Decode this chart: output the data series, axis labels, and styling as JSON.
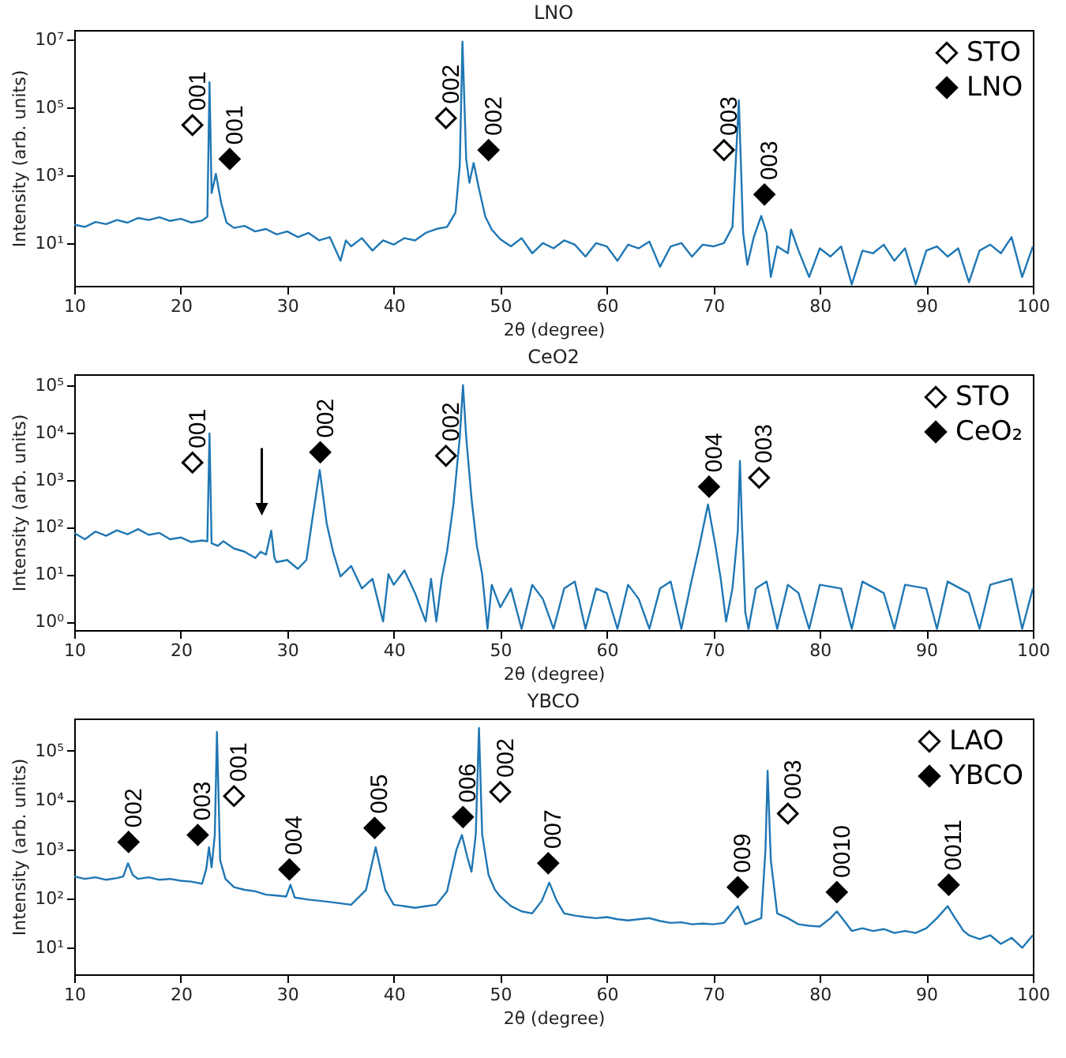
{
  "chart_data": [
    {
      "type": "line",
      "title": "LNO",
      "xlabel": "2θ (degree)",
      "ylabel": "Intensity (arb. units)",
      "log": "y",
      "legend": "top right",
      "xlim": [
        10,
        100
      ],
      "xticks": [
        10,
        20,
        30,
        40,
        50,
        60,
        70,
        80,
        90,
        100
      ],
      "ylim": [
        0.55,
        19000000
      ],
      "yticks": [
        {
          "value": 10,
          "label": "10¹"
        },
        {
          "value": 1000,
          "label": "10³"
        },
        {
          "value": 100000,
          "label": "10⁵"
        },
        {
          "value": 10000000,
          "label": "10⁷"
        }
      ],
      "series": [
        {
          "color": "#1f77b4",
          "x": [
            10,
            11,
            12,
            13,
            14,
            15,
            16,
            17,
            18,
            19,
            20,
            21,
            22,
            22.5,
            22.7,
            22.9,
            23.3,
            23.8,
            24.3,
            25,
            26,
            27,
            28,
            29,
            30,
            31,
            32,
            33,
            34,
            35,
            35.5,
            36,
            37,
            38,
            39,
            40,
            41,
            42,
            43,
            44,
            45,
            45.8,
            46.2,
            46.45,
            46.8,
            47.1,
            47.5,
            48,
            48.6,
            49.2,
            50,
            51,
            52,
            53,
            54,
            55,
            56,
            57,
            58,
            59,
            60,
            61,
            62,
            63,
            64,
            65,
            66,
            67,
            68,
            69,
            70,
            71,
            71.8,
            72.4,
            72.8,
            73.2,
            73.8,
            74.5,
            75,
            75.4,
            76,
            77,
            77.3,
            78,
            79,
            80,
            81,
            82,
            83,
            84,
            85,
            86,
            87,
            88,
            89,
            90,
            91,
            92,
            93,
            94,
            95,
            96,
            97,
            98,
            99,
            100
          ],
          "values": [
            35,
            30,
            42,
            36,
            48,
            40,
            55,
            48,
            58,
            45,
            52,
            40,
            46,
            60,
            550000,
            300,
            1100,
            150,
            40,
            28,
            32,
            22,
            26,
            18,
            22,
            15,
            20,
            12,
            15,
            3,
            12,
            8,
            14,
            6,
            12,
            9,
            14,
            12,
            20,
            26,
            30,
            80,
            2000,
            8700000,
            3000,
            600,
            2300,
            400,
            60,
            25,
            13,
            8,
            14,
            5,
            10,
            7,
            12,
            9,
            4,
            10,
            8,
            3,
            9,
            7,
            11,
            2,
            8,
            10,
            4,
            9,
            8,
            10,
            30,
            160000,
            20,
            2.3,
            15,
            63,
            20,
            1,
            8,
            5,
            25,
            6,
            1,
            7,
            4,
            8,
            0.6,
            6,
            5,
            9,
            3,
            7,
            0.6,
            6,
            8,
            4,
            7,
            0.7,
            6,
            9,
            5,
            15,
            1,
            8
          ]
        },
        {
          "type": "scatter",
          "name": "STO",
          "color": "#ffffff",
          "marker": "diamond",
          "x": [
            21.1,
            44.9,
            71
          ],
          "values": [
            30000,
            48000,
            5500
          ]
        },
        {
          "type": "scatter",
          "name": "LNO",
          "color": "#000000",
          "marker": "diamond",
          "x": [
            24.6,
            48.9,
            74.8
          ],
          "values": [
            3000,
            5500,
            270
          ]
        }
      ],
      "annotations": [
        {
          "text": "001",
          "x": 21.1,
          "y": 30000
        },
        {
          "text": "002",
          "x": 44.9,
          "y": 48000
        },
        {
          "text": "003",
          "x": 71,
          "y": 5500
        },
        {
          "text": "001",
          "x": 24.6,
          "y": 3000
        },
        {
          "text": "002",
          "x": 48.9,
          "y": 5500
        },
        {
          "text": "003",
          "x": 74.8,
          "y": 270
        }
      ]
    },
    {
      "type": "line",
      "title": "CeO2",
      "xlabel": "2θ (degree)",
      "ylabel": "Intensity (arb. units)",
      "log": "y",
      "legend": "top right",
      "xlim": [
        10,
        100
      ],
      "xticks": [
        10,
        20,
        30,
        40,
        50,
        60,
        70,
        80,
        90,
        100
      ],
      "ylim": [
        0.66,
        170000
      ],
      "yticks": [
        {
          "value": 1,
          "label": "10⁰"
        },
        {
          "value": 10,
          "label": "10¹"
        },
        {
          "value": 100,
          "label": "10²"
        },
        {
          "value": 1000,
          "label": "10³"
        },
        {
          "value": 10000,
          "label": "10⁴"
        },
        {
          "value": 100000,
          "label": "10⁵"
        }
      ],
      "series": [
        {
          "color": "#1f77b4",
          "x": [
            10,
            11,
            12,
            13,
            14,
            15,
            16,
            17,
            18,
            19,
            20,
            21,
            22,
            22.5,
            22.7,
            22.9,
            23.5,
            24,
            25,
            26,
            27,
            27.5,
            28,
            28.5,
            28.8,
            29,
            30,
            31,
            31.8,
            32.3,
            33.05,
            33.7,
            34.3,
            35,
            36,
            37,
            38,
            39,
            39.5,
            40,
            41,
            42,
            43,
            43.5,
            44,
            44.5,
            45,
            45.6,
            46.2,
            46.5,
            46.8,
            47.3,
            47.8,
            48.3,
            48.8,
            49.2,
            50,
            51,
            52,
            53,
            54,
            55,
            56,
            57,
            58,
            59,
            60,
            61,
            62,
            63,
            64,
            65,
            66,
            67,
            68,
            68.7,
            69.5,
            70.2,
            70.7,
            71.2,
            71.8,
            72.3,
            72.5,
            72.7,
            73,
            73.3,
            74,
            75,
            76,
            77,
            78,
            79,
            80,
            82,
            83,
            84,
            86,
            87,
            88,
            90,
            91,
            92,
            94,
            95,
            96,
            98,
            99,
            100
          ],
          "values": [
            75,
            55,
            80,
            65,
            85,
            70,
            90,
            68,
            75,
            55,
            60,
            48,
            52,
            50,
            9500,
            45,
            40,
            50,
            35,
            30,
            22,
            30,
            26,
            83,
            22,
            18,
            20,
            13,
            20,
            120,
            1600,
            120,
            30,
            9,
            15,
            5,
            8,
            1,
            10,
            6,
            12,
            4,
            1,
            8,
            1,
            8,
            30,
            300,
            8000,
            100000,
            8000,
            400,
            40,
            10,
            0.7,
            6,
            2,
            5,
            0.7,
            6,
            3,
            0.7,
            5,
            7,
            0.7,
            5,
            4,
            0.7,
            6,
            3,
            0.7,
            5,
            7,
            0.7,
            8,
            40,
            300,
            40,
            8,
            1,
            5,
            80,
            2500,
            100,
            1.6,
            0.7,
            5,
            7,
            0.7,
            6,
            4,
            0.7,
            6,
            5,
            0.7,
            7,
            4,
            0.7,
            6,
            5,
            0.7,
            7,
            4,
            0.7,
            6,
            8,
            0.7,
            5
          ]
        },
        {
          "type": "scatter",
          "name": "STO",
          "color": "#ffffff",
          "marker": "diamond",
          "x": [
            21.1,
            44.9,
            74.3
          ],
          "values": [
            2300,
            3200,
            1100
          ]
        },
        {
          "type": "scatter",
          "name": "CeO₂",
          "color": "#000000",
          "marker": "diamond",
          "x": [
            33.1,
            69.6
          ],
          "values": [
            3800,
            710
          ]
        }
      ],
      "annotations": [
        {
          "text": "001",
          "x": 21.1,
          "y": 2300
        },
        {
          "text": "002",
          "x": 44.9,
          "y": 3200
        },
        {
          "text": "003",
          "x": 74.3,
          "y": 1100
        },
        {
          "text": "002",
          "x": 33.1,
          "y": 3800
        },
        {
          "text": "004",
          "x": 69.6,
          "y": 710
        }
      ]
    },
    {
      "type": "line",
      "title": "YBCO",
      "xlabel": "2θ (degree)",
      "ylabel": "Intensity (arb. units)",
      "log": "y",
      "legend": "top right",
      "xlim": [
        10,
        100
      ],
      "xticks": [
        10,
        20,
        30,
        40,
        50,
        60,
        70,
        80,
        90,
        100
      ],
      "ylim": [
        2.9,
        450000
      ],
      "yticks": [
        {
          "value": 10,
          "label": "10¹"
        },
        {
          "value": 100,
          "label": "10²"
        },
        {
          "value": 1000,
          "label": "10³"
        },
        {
          "value": 10000,
          "label": "10⁴"
        },
        {
          "value": 100000,
          "label": "10⁵"
        }
      ],
      "series": [
        {
          "color": "#1f77b4",
          "x": [
            10,
            11,
            12,
            13,
            14,
            14.6,
            15.05,
            15.5,
            16,
            17,
            18,
            19,
            20,
            21,
            22,
            22.4,
            22.65,
            22.9,
            23.2,
            23.4,
            23.7,
            24.2,
            25,
            26,
            27,
            28,
            29,
            29.9,
            30.3,
            30.7,
            32,
            33,
            34,
            35,
            36,
            37.4,
            38.3,
            39.2,
            40,
            41,
            42,
            43,
            44,
            45,
            45.9,
            46.4,
            46.9,
            47.3,
            47.7,
            48,
            48.3,
            48.9,
            49.5,
            50,
            51,
            52,
            53,
            53.9,
            54.6,
            55.3,
            56,
            57,
            58,
            59,
            60,
            61,
            62,
            63,
            64,
            65,
            66,
            67,
            68,
            69,
            70,
            71,
            72.3,
            73,
            74.5,
            74.9,
            75.1,
            75.4,
            76,
            77,
            78,
            79,
            80,
            81,
            81.6,
            82.3,
            83,
            84,
            85,
            86,
            87,
            88,
            89,
            90,
            91,
            92,
            92.7,
            93.5,
            94,
            95,
            96,
            97,
            98,
            99,
            100
          ],
          "values": [
            280,
            250,
            270,
            240,
            260,
            280,
            520,
            300,
            250,
            270,
            240,
            250,
            230,
            220,
            200,
            400,
            1100,
            430,
            2000,
            240000,
            600,
            250,
            170,
            150,
            140,
            120,
            115,
            110,
            190,
            105,
            95,
            90,
            85,
            80,
            75,
            150,
            1100,
            150,
            75,
            70,
            65,
            70,
            75,
            140,
            1000,
            1950,
            700,
            350,
            2000,
            290000,
            2000,
            300,
            150,
            110,
            70,
            55,
            50,
            90,
            210,
            90,
            50,
            45,
            42,
            40,
            42,
            38,
            36,
            38,
            40,
            35,
            32,
            33,
            30,
            31,
            30,
            32,
            70,
            30,
            40,
            1000,
            39000,
            600,
            50,
            40,
            30,
            28,
            27,
            40,
            55,
            35,
            22,
            25,
            22,
            24,
            20,
            22,
            20,
            25,
            40,
            70,
            40,
            22,
            18,
            15,
            18,
            12,
            16,
            10,
            18
          ]
        },
        {
          "type": "scatter",
          "name": "LAO",
          "color": "#ffffff",
          "marker": "diamond",
          "x": [
            25,
            50,
            77
          ],
          "values": [
            12000,
            14500,
            5300
          ]
        },
        {
          "type": "scatter",
          "name": "YBCO",
          "color": "#000000",
          "marker": "diamond",
          "x": [
            15.1,
            21.6,
            30.2,
            38.2,
            46.5,
            54.5,
            72.3,
            81.6,
            92.1
          ],
          "values": [
            1400,
            1950,
            390,
            2700,
            4500,
            520,
            170,
            135,
            190
          ]
        }
      ],
      "annotations": [
        {
          "text": "001",
          "x": 25,
          "y": 12000
        },
        {
          "text": "002",
          "x": 50,
          "y": 14500
        },
        {
          "text": "003",
          "x": 77,
          "y": 5300
        },
        {
          "text": "002",
          "x": 15.1,
          "y": 1400
        },
        {
          "text": "003",
          "x": 21.6,
          "y": 1950
        },
        {
          "text": "004",
          "x": 30.2,
          "y": 390
        },
        {
          "text": "005",
          "x": 38.2,
          "y": 2700
        },
        {
          "text": "006",
          "x": 46.5,
          "y": 4500
        },
        {
          "text": "007",
          "x": 54.5,
          "y": 520
        },
        {
          "text": "009",
          "x": 72.3,
          "y": 170
        },
        {
          "text": "0010",
          "x": 81.6,
          "y": 135
        },
        {
          "text": "0011",
          "x": 92.1,
          "y": 190
        }
      ]
    }
  ]
}
